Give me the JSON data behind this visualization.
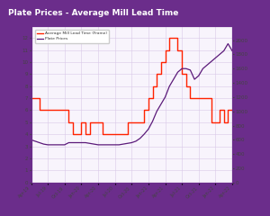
{
  "title": "Plate Prices - Average Mill Lead Time",
  "title_bg": "#6b2d8b",
  "title_color": "#ffffff",
  "border_color": "#6b2d8b",
  "bg_color": "#f8f4fc",
  "grid_color": "#d8c8e8",
  "legend1": "Average Mill Lead Time (Frame)",
  "legend2": "Plate Prices",
  "line1_color": "#ff2200",
  "line2_color": "#5b1a7a",
  "ylim_left": [
    0,
    13
  ],
  "ylim_right": [
    0,
    2200
  ],
  "yticks_left": [
    0,
    1,
    2,
    3,
    4,
    5,
    6,
    7,
    8,
    9,
    10,
    11,
    12
  ],
  "yticks_right": [
    0,
    200,
    400,
    600,
    800,
    1000,
    1200,
    1400,
    1600,
    1800,
    2000
  ],
  "xtick_labels": [
    "Apr-19",
    "Jul-19",
    "Oct-19",
    "Jan-20",
    "Apr-20",
    "Jul-20",
    "Oct-20",
    "Jan-21",
    "Apr-21",
    "Jul-21",
    "Oct-21",
    "Jan-22",
    "Apr-22"
  ],
  "lead_time_x": [
    0,
    1,
    2,
    3,
    4,
    5,
    6,
    7,
    8,
    9,
    10,
    11,
    12,
    13,
    14,
    15,
    16,
    17,
    18,
    19,
    20,
    21,
    22,
    23,
    24,
    25,
    26,
    27,
    28,
    29,
    30,
    31,
    32,
    33,
    34,
    35,
    36,
    37,
    38,
    39,
    40,
    41,
    42,
    43,
    44,
    45,
    46,
    47,
    48
  ],
  "lead_time_y": [
    7,
    7,
    6,
    6,
    6,
    6,
    6,
    6,
    6,
    5,
    4,
    4,
    5,
    4,
    5,
    5,
    5,
    4,
    4,
    4,
    4,
    4,
    4,
    5,
    5,
    5,
    5,
    6,
    7,
    8,
    9,
    10,
    11,
    12,
    12,
    11,
    9,
    8,
    7,
    7,
    7,
    7,
    7,
    5,
    5,
    6,
    5,
    6,
    6
  ],
  "plate_price_x": [
    0,
    1,
    2,
    3,
    4,
    5,
    6,
    7,
    8,
    9,
    10,
    11,
    12,
    13,
    14,
    15,
    16,
    17,
    18,
    19,
    20,
    21,
    22,
    23,
    24,
    25,
    26,
    27,
    28,
    29,
    30,
    31,
    32,
    33,
    34,
    35,
    36,
    37,
    38,
    39,
    40,
    41,
    42,
    43,
    44,
    45,
    46,
    47,
    48
  ],
  "plate_price_y": [
    600,
    580,
    560,
    540,
    530,
    530,
    530,
    530,
    530,
    560,
    560,
    560,
    560,
    560,
    550,
    540,
    530,
    530,
    530,
    530,
    530,
    530,
    540,
    550,
    560,
    580,
    620,
    680,
    750,
    860,
    1000,
    1100,
    1200,
    1350,
    1450,
    1550,
    1600,
    1600,
    1580,
    1450,
    1500,
    1600,
    1650,
    1700,
    1750,
    1800,
    1850,
    1950,
    1850
  ]
}
